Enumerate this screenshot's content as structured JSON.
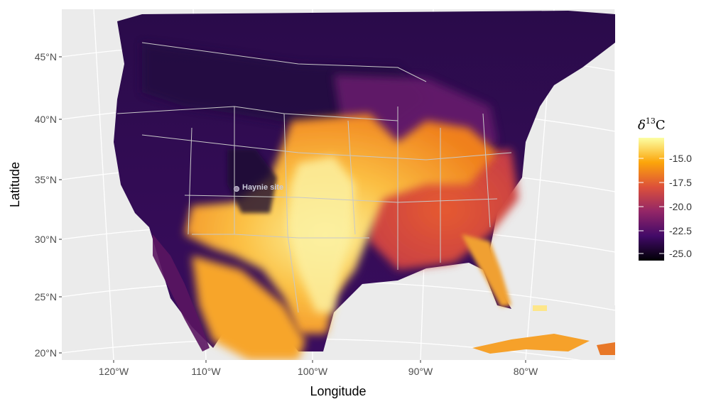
{
  "axes": {
    "x_title": "Longitude",
    "y_title": "Latitude",
    "x_ticks": [
      "120°W",
      "110°W",
      "100°W",
      "90°W",
      "80°W"
    ],
    "y_ticks": [
      "45°N",
      "40°N",
      "35°N",
      "30°N",
      "25°N",
      "20°N"
    ]
  },
  "site": {
    "label": "Haynie site",
    "lon": -108.2,
    "lat": 37.4
  },
  "legend": {
    "title_symbol": "δ",
    "title_superscript": "13",
    "title_element": "C",
    "ticks": [
      "-15.0",
      "-17.5",
      "-20.0",
      "-22.5",
      "-25.0"
    ],
    "tick_values": [
      -15.0,
      -17.5,
      -20.0,
      -22.5,
      -25.0
    ],
    "range": [
      -26.0,
      -14.0
    ],
    "colormap": "inferno",
    "colors": [
      "#000004",
      "#420a68",
      "#932667",
      "#dd513a",
      "#fca50a",
      "#fcffa4"
    ]
  },
  "colors": {
    "panel_background": "#ebebeb",
    "graticule": "#ffffff",
    "borders": "#c8c8c8"
  }
}
